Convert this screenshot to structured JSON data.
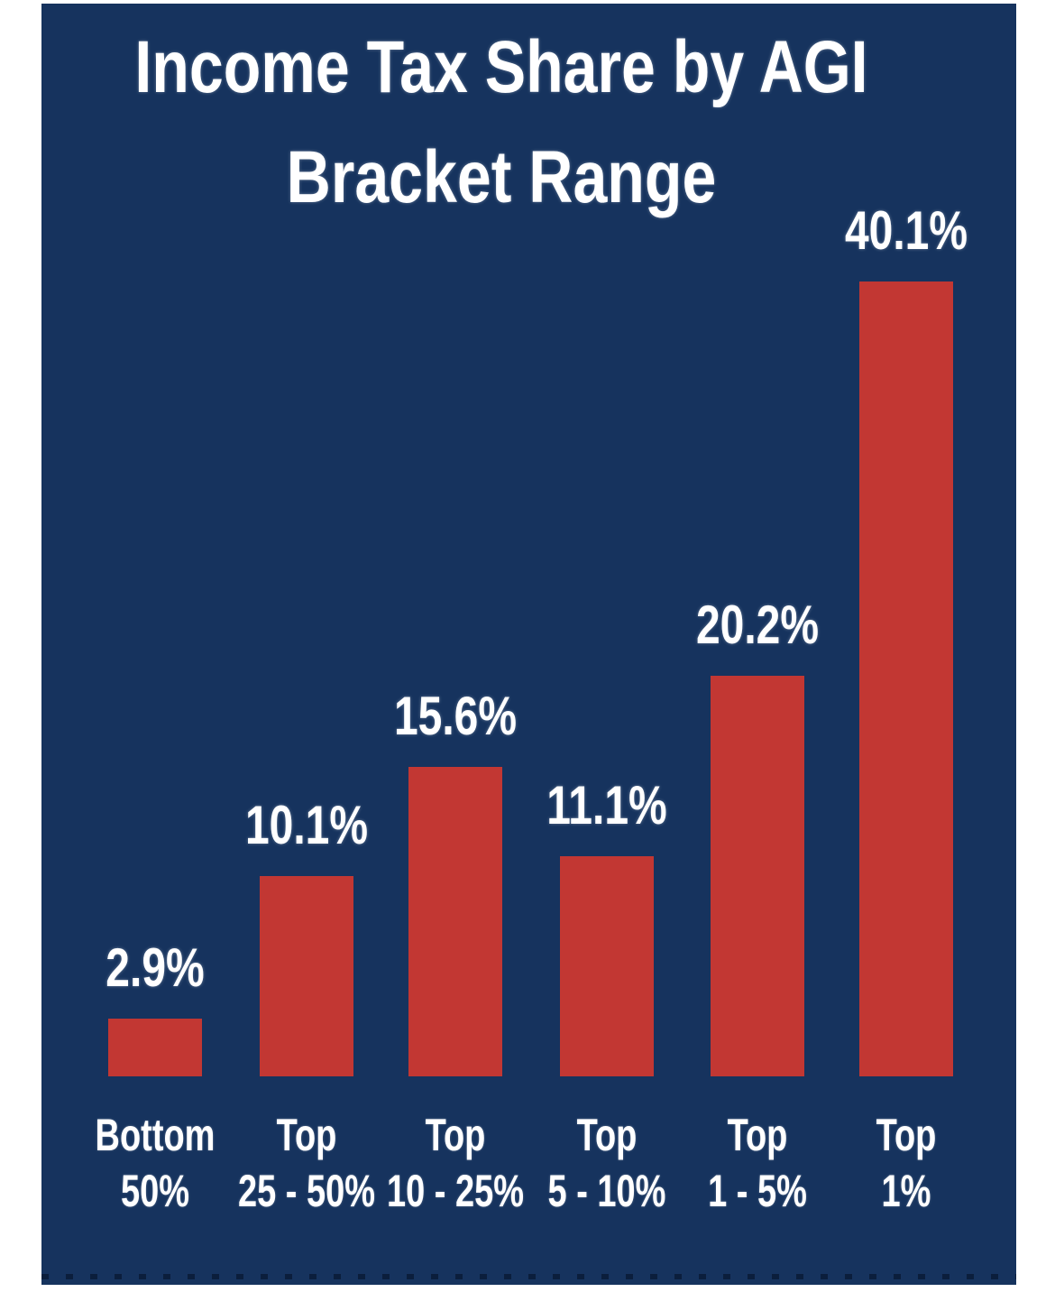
{
  "panel": {
    "background_color": "#16335e",
    "margin_color": "#ffffff"
  },
  "title": {
    "lines": [
      "Income Tax Share by AGI",
      "Bracket Range"
    ]
  },
  "chart_data": {
    "type": "bar",
    "title": "Income Tax Share by AGI Bracket Range",
    "categories": [
      "Bottom 50%",
      "Top 25 - 50%",
      "Top 10 - 25%",
      "Top 5 - 10%",
      "Top 1 - 5%",
      "Top 1%"
    ],
    "category_lines": [
      [
        "Bottom",
        "50%"
      ],
      [
        "Top",
        "25 - 50%"
      ],
      [
        "Top",
        "10 - 25%"
      ],
      [
        "Top",
        "5 - 10%"
      ],
      [
        "Top",
        "1 - 5%"
      ],
      [
        "Top",
        "1%"
      ]
    ],
    "values": [
      2.9,
      10.1,
      15.6,
      11.1,
      20.2,
      40.1
    ],
    "value_labels": [
      "2.9%",
      "10.1%",
      "15.6%",
      "11.1%",
      "20.2%",
      "40.1%"
    ],
    "xlabel": "",
    "ylabel": "",
    "ylim": [
      0,
      42
    ],
    "grid": false,
    "legend": false,
    "bar_color": "#c23733",
    "label_color": "#ffffff",
    "background_color": "#16335e"
  }
}
